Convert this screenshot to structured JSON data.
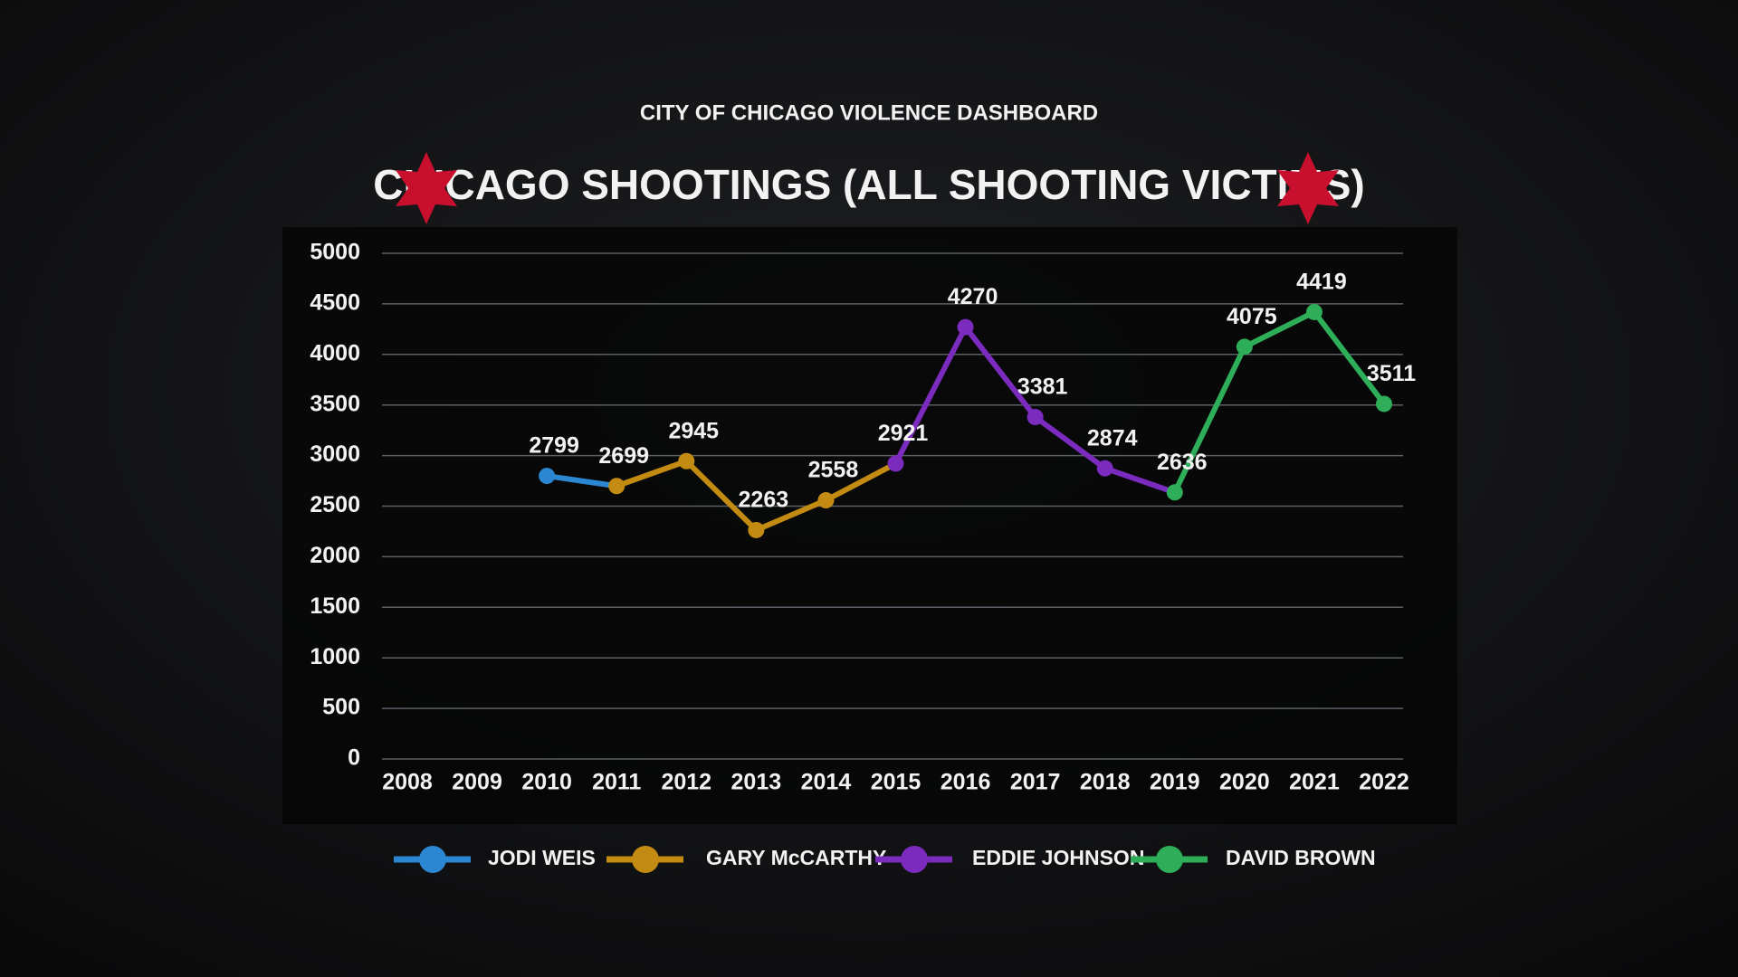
{
  "header": {
    "subtitle": "CITY OF CHICAGO VIOLENCE DASHBOARD"
  },
  "chart_data": {
    "type": "line",
    "title": "CHICAGO SHOOTINGS (ALL SHOOTING VICTIMS)",
    "categories": [
      "2008",
      "2009",
      "2010",
      "2011",
      "2012",
      "2013",
      "2014",
      "2015",
      "2016",
      "2017",
      "2018",
      "2019",
      "2020",
      "2021",
      "2022"
    ],
    "series": [
      {
        "name": "JODI WEIS",
        "color": "#2b87d1",
        "values": [
          null,
          null,
          2799,
          2699,
          null,
          null,
          null,
          null,
          null,
          null,
          null,
          null,
          null,
          null,
          null
        ]
      },
      {
        "name": "GARY McCARTHY",
        "color": "#c38b12",
        "values": [
          null,
          null,
          null,
          2699,
          2945,
          2263,
          2558,
          2921,
          null,
          null,
          null,
          null,
          null,
          null,
          null
        ]
      },
      {
        "name": "EDDIE JOHNSON",
        "color": "#7b2bbd",
        "values": [
          null,
          null,
          null,
          null,
          null,
          null,
          null,
          2921,
          4270,
          3381,
          2874,
          2636,
          null,
          null,
          null
        ]
      },
      {
        "name": "DAVID BROWN",
        "color": "#2fae59",
        "values": [
          null,
          null,
          null,
          null,
          null,
          null,
          null,
          null,
          null,
          null,
          null,
          2636,
          4075,
          4419,
          3511
        ]
      }
    ],
    "ylim": [
      0,
      5000
    ],
    "yticks": [
      0,
      500,
      1000,
      1500,
      2000,
      2500,
      3000,
      3500,
      4000,
      4500,
      5000
    ],
    "grid": true
  }
}
